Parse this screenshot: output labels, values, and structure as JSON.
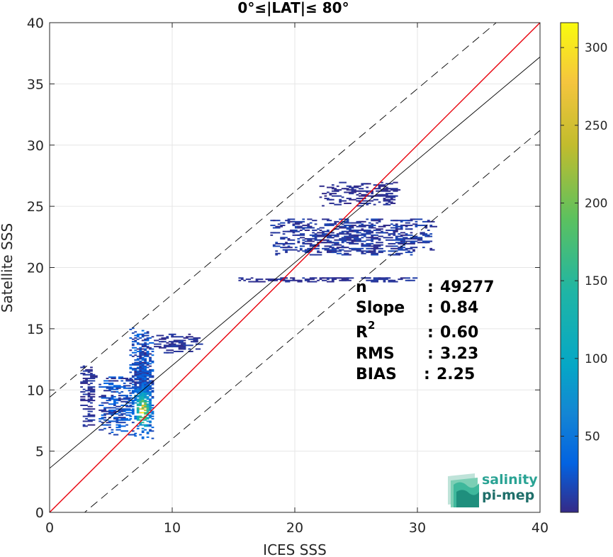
{
  "chart_data": {
    "type": "heatmap",
    "title": "0°≤|LAT|≤ 80°",
    "xlabel": "ICES SSS",
    "ylabel": "Satellite SSS",
    "xlim": [
      0,
      40
    ],
    "ylim": [
      0,
      40
    ],
    "xticks": [
      0,
      10,
      20,
      30,
      40
    ],
    "yticks": [
      0,
      5,
      10,
      15,
      20,
      25,
      30,
      35,
      40
    ],
    "grid": true,
    "colorbar": {
      "range": [
        1,
        316
      ],
      "ticks": [
        50,
        100,
        150,
        200,
        250,
        300
      ],
      "colormap": "parula"
    },
    "lines": [
      {
        "name": "identity",
        "slope": 1.0,
        "intercept": 0.0,
        "color": "#e8000b",
        "style": "solid"
      },
      {
        "name": "regression",
        "slope": 0.84,
        "intercept": 3.6,
        "color": "#000000",
        "style": "solid"
      },
      {
        "name": "upper-bound",
        "slope": 0.84,
        "intercept": 9.4,
        "color": "#000000",
        "style": "dashed"
      },
      {
        "name": "lower-bound",
        "slope": 0.84,
        "intercept": -2.4,
        "color": "#000000",
        "style": "dashed"
      }
    ],
    "density_clusters": [
      {
        "x_range": [
          6.5,
          8.5
        ],
        "y_range": [
          6.0,
          15.0
        ],
        "peak": 300
      },
      {
        "x_range": [
          4.0,
          6.5
        ],
        "y_range": [
          6.0,
          11.0
        ],
        "peak": 60
      },
      {
        "x_range": [
          2.5,
          3.5
        ],
        "y_range": [
          7.0,
          12.0
        ],
        "peak": 20
      },
      {
        "x_range": [
          8.5,
          12.0
        ],
        "y_range": [
          13.0,
          14.5
        ],
        "peak": 20
      },
      {
        "x_range": [
          18.0,
          31.0
        ],
        "y_range": [
          21.0,
          24.0
        ],
        "peak": 30
      },
      {
        "x_range": [
          15.0,
          30.0
        ],
        "y_range": [
          18.8,
          19.2
        ],
        "peak": 20
      },
      {
        "x_range": [
          22.0,
          28.0
        ],
        "y_range": [
          25.0,
          27.0
        ],
        "peak": 15
      }
    ],
    "stats": {
      "n": "49277",
      "slope": "0.84",
      "r2": "0.60",
      "rms": "3.23",
      "bias": "2.25"
    }
  },
  "stats_labels": {
    "n": "n",
    "slope": "Slope",
    "r": "R",
    "r_sup": "2",
    "rms": "RMS",
    "bias": "BIAS",
    "sep": ":"
  },
  "logo": {
    "line1": "salinity",
    "line2": "pi-mep",
    "color1": "#2aa394",
    "color2": "#1f6f6a"
  }
}
